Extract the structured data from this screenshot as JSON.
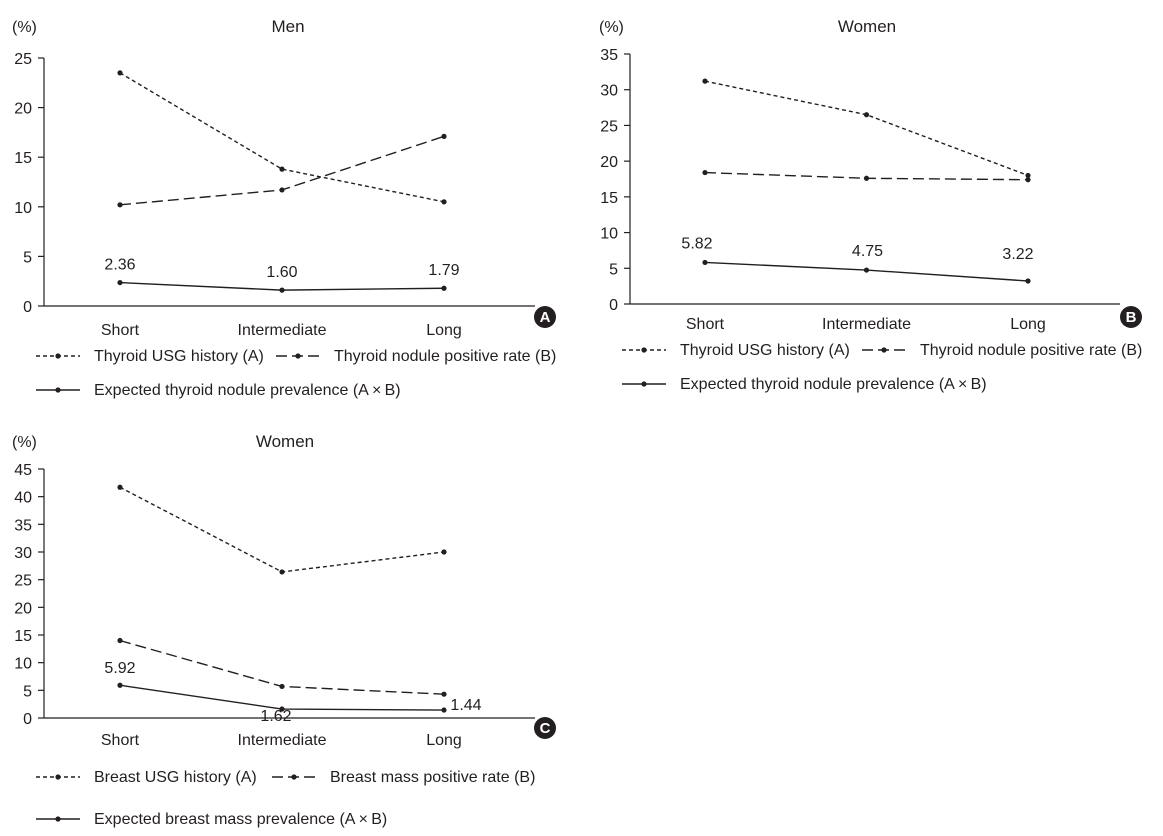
{
  "chart_data": [
    {
      "panel": "A",
      "type": "line",
      "title": "Men",
      "ylabel": "(%)",
      "ylim": [
        0,
        25
      ],
      "yticks": [
        0,
        5,
        10,
        15,
        20,
        25
      ],
      "categories": [
        "Short",
        "Intermediate",
        "Long"
      ],
      "series": [
        {
          "name": "Thyroid USG history (A)",
          "style": "dotted",
          "values": [
            23.5,
            13.8,
            10.5
          ]
        },
        {
          "name": "Thyroid nodule positive rate (B)",
          "style": "dashed",
          "values": [
            10.2,
            11.7,
            17.1
          ]
        },
        {
          "name": "Expected thyroid nodule prevalence (A × B)",
          "style": "solid",
          "values": [
            2.36,
            1.6,
            1.79
          ]
        }
      ],
      "data_labels": [
        "2.36",
        "1.60",
        "1.79"
      ],
      "legend": "bottom"
    },
    {
      "panel": "B",
      "type": "line",
      "title": "Women",
      "ylabel": "(%)",
      "ylim": [
        0,
        35
      ],
      "yticks": [
        0,
        5,
        10,
        15,
        20,
        25,
        30,
        35
      ],
      "categories": [
        "Short",
        "Intermediate",
        "Long"
      ],
      "series": [
        {
          "name": "Thyroid USG history (A)",
          "style": "dotted",
          "values": [
            31.2,
            26.5,
            18.0
          ]
        },
        {
          "name": "Thyroid nodule positive rate (B)",
          "style": "dashed",
          "values": [
            18.4,
            17.6,
            17.4
          ]
        },
        {
          "name": "Expected thyroid nodule prevalence (A × B)",
          "style": "solid",
          "values": [
            5.82,
            4.75,
            3.22
          ]
        }
      ],
      "data_labels": [
        "5.82",
        "4.75",
        "3.22"
      ],
      "legend": "bottom"
    },
    {
      "panel": "C",
      "type": "line",
      "title": "Women",
      "ylabel": "(%)",
      "ylim": [
        0,
        45
      ],
      "yticks": [
        0,
        5,
        10,
        15,
        20,
        25,
        30,
        35,
        40,
        45
      ],
      "categories": [
        "Short",
        "Intermediate",
        "Long"
      ],
      "series": [
        {
          "name": "Breast USG history (A)",
          "style": "dotted",
          "values": [
            41.7,
            26.4,
            30.0
          ]
        },
        {
          "name": "Breast mass positive rate (B)",
          "style": "dashed",
          "values": [
            14.0,
            5.7,
            4.3
          ]
        },
        {
          "name": "Expected breast mass prevalence (A × B)",
          "style": "solid",
          "values": [
            5.92,
            1.62,
            1.44
          ]
        }
      ],
      "data_labels": [
        "5.92",
        "1.62",
        "1.44"
      ],
      "legend": "bottom"
    }
  ]
}
